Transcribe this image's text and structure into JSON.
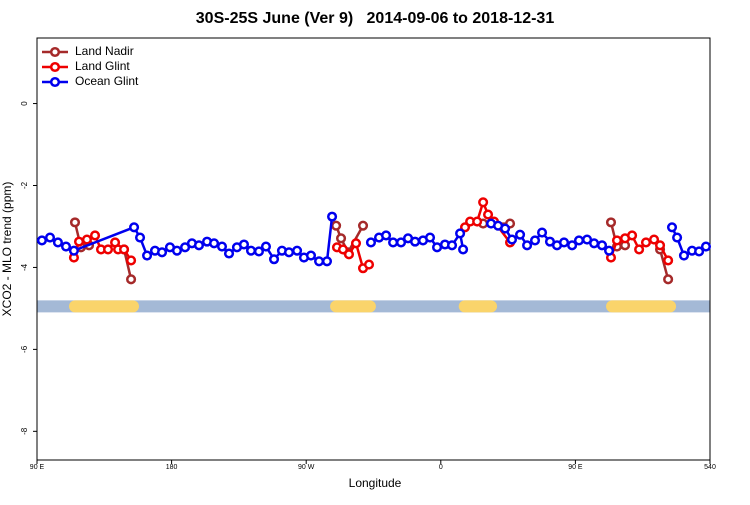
{
  "chart_data": {
    "type": "line",
    "title": "30S-25S June (Ver 9)   2014-09-06 to 2018-12-31",
    "xlabel": "Longitude",
    "ylabel": "XCO2 - MLO trend (ppm)",
    "xlim": [
      90,
      540
    ],
    "ylim": [
      -8.7,
      1.6
    ],
    "xticks": [
      {
        "value": 90,
        "label": "90 E"
      },
      180,
      {
        "value": 270,
        "label": "90 W"
      },
      0,
      {
        "value": 450,
        "label": "90 E"
      },
      540
    ],
    "yticks": [
      0,
      -2,
      -4,
      -6,
      -8
    ],
    "legend": "top-left",
    "band": {
      "y": -4.95,
      "color": "#a4b9d6",
      "land_color": "#fad46b",
      "land": [
        [
          115.4,
          154.2
        ],
        [
          290,
          312.6
        ],
        [
          376,
          393.6
        ],
        [
          474.5,
          513.3
        ]
      ]
    },
    "series": [
      {
        "name": "Land Nadir",
        "color": "#a52a2a",
        "x": [
          115.4,
          119.4,
          124.8,
          null,
          148.2,
          152.9,
          null,
          290,
          293.3,
          298,
          308,
          null,
          388.3,
          406.3,
          null,
          473.8,
          477.8,
          483.2,
          null,
          506.6,
          512
        ],
        "values": [
          -2.9,
          -3.51,
          -3.46,
          null,
          -3.56,
          -4.29,
          null,
          -2.98,
          -3.29,
          -3.63,
          -2.98,
          null,
          -2.93,
          -2.93,
          null,
          -2.9,
          -3.49,
          -3.46,
          null,
          -3.56,
          -4.29
        ]
      },
      {
        "name": "Land Glint",
        "color": "#ee0000",
        "x": [
          114.7,
          118.1,
          123.4,
          128.8,
          132.8,
          137.5,
          142.2,
          144.2,
          148.2,
          152.9,
          null,
          290.6,
          294.6,
          298.6,
          303.3,
          308,
          312,
          null,
          376.2,
          379.6,
          384.3,
          388.3,
          391.6,
          395.6,
          406.3,
          null,
          473.8,
          477.8,
          483.2,
          487.9,
          492.6,
          497.2,
          502.6,
          506.6,
          512
        ],
        "values": [
          -3.76,
          -3.37,
          -3.32,
          -3.22,
          -3.56,
          -3.56,
          -3.39,
          -3.56,
          -3.56,
          -3.83,
          null,
          -3.51,
          -3.56,
          -3.68,
          -3.41,
          -4.02,
          -3.93,
          null,
          -3.02,
          -2.88,
          -2.88,
          -2.41,
          -2.71,
          -2.88,
          -3.39,
          null,
          -3.76,
          -3.34,
          -3.29,
          -3.22,
          -3.56,
          -3.39,
          -3.32,
          -3.46,
          -3.83
        ]
      },
      {
        "name": "Ocean Glint",
        "color": "#0000ee",
        "x": [
          93.3,
          98.7,
          104,
          109.4,
          114.7,
          154.9,
          158.9,
          163.6,
          168.9,
          173.6,
          178.9,
          183.6,
          189,
          193.6,
          198.3,
          203.7,
          208.4,
          213.7,
          218.4,
          223.7,
          228.4,
          233.1,
          238.4,
          243.1,
          248.5,
          253.8,
          258.5,
          263.9,
          268.5,
          273.2,
          278.6,
          283.9,
          287.3,
          null,
          313.3,
          318.7,
          323.4,
          328.1,
          333.4,
          338.1,
          342.8,
          348.1,
          352.8,
          357.5,
          362.8,
          367.5,
          372.9,
          374.9,
          null,
          393.6,
          398.3,
          403,
          407.6,
          413,
          417.7,
          423,
          427.7,
          433,
          437.7,
          442.4,
          447.8,
          452.4,
          457.8,
          462.5,
          467.8,
          472.5,
          null,
          514.6,
          518,
          522.6,
          528,
          532.7,
          537.3
        ],
        "values": [
          -3.34,
          -3.27,
          -3.39,
          -3.49,
          -3.59,
          -3.02,
          -3.27,
          -3.71,
          -3.59,
          -3.63,
          -3.51,
          -3.59,
          -3.51,
          -3.41,
          -3.46,
          -3.37,
          -3.41,
          -3.49,
          -3.66,
          -3.51,
          -3.44,
          -3.59,
          -3.61,
          -3.49,
          -3.8,
          -3.59,
          -3.63,
          -3.59,
          -3.76,
          -3.71,
          -3.85,
          -3.85,
          -2.76,
          null,
          -3.39,
          -3.27,
          -3.22,
          -3.39,
          -3.39,
          -3.29,
          -3.37,
          -3.34,
          -3.27,
          -3.51,
          -3.44,
          -3.46,
          -3.17,
          -3.56,
          null,
          -2.93,
          -2.98,
          -3.05,
          -3.32,
          -3.2,
          -3.46,
          -3.34,
          -3.15,
          -3.37,
          -3.46,
          -3.39,
          -3.46,
          -3.34,
          -3.32,
          -3.41,
          -3.46,
          -3.59,
          null,
          -3.02,
          -3.27,
          -3.71,
          -3.59,
          -3.61,
          -3.49
        ]
      }
    ]
  }
}
